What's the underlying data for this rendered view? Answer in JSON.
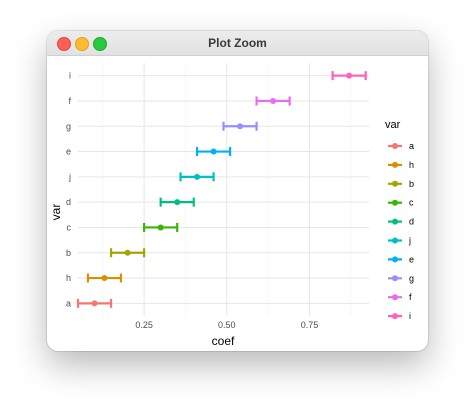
{
  "window": {
    "title": "Plot Zoom",
    "controls": [
      "close-button",
      "minimize-button",
      "maximize-button"
    ]
  },
  "chart_data": {
    "type": "scatter",
    "subtype": "point-range with horizontal error bars",
    "xlabel": "coef",
    "ylabel": "var",
    "xlim": [
      0.05,
      0.93
    ],
    "x_ticks": [
      0.25,
      0.5,
      0.75
    ],
    "x_tick_labels": [
      "0.25",
      "0.50",
      "0.75"
    ],
    "categories": [
      "a",
      "h",
      "b",
      "c",
      "d",
      "j",
      "e",
      "g",
      "f",
      "i"
    ],
    "grid": true,
    "legend": {
      "title": "var",
      "position": "right",
      "order": [
        "a",
        "h",
        "b",
        "c",
        "d",
        "j",
        "e",
        "g",
        "f",
        "i"
      ]
    },
    "series": [
      {
        "name": "a",
        "x": 0.1,
        "low": 0.05,
        "high": 0.15,
        "color": "#F8766D"
      },
      {
        "name": "h",
        "x": 0.13,
        "low": 0.08,
        "high": 0.18,
        "color": "#D89000"
      },
      {
        "name": "b",
        "x": 0.2,
        "low": 0.15,
        "high": 0.25,
        "color": "#A3A500"
      },
      {
        "name": "c",
        "x": 0.3,
        "low": 0.25,
        "high": 0.35,
        "color": "#39B600"
      },
      {
        "name": "d",
        "x": 0.35,
        "low": 0.3,
        "high": 0.4,
        "color": "#00BF7D"
      },
      {
        "name": "j",
        "x": 0.41,
        "low": 0.36,
        "high": 0.46,
        "color": "#00BFC4"
      },
      {
        "name": "e",
        "x": 0.46,
        "low": 0.41,
        "high": 0.51,
        "color": "#00B0F6"
      },
      {
        "name": "g",
        "x": 0.54,
        "low": 0.49,
        "high": 0.59,
        "color": "#9590FF"
      },
      {
        "name": "f",
        "x": 0.64,
        "low": 0.59,
        "high": 0.69,
        "color": "#E76BF3"
      },
      {
        "name": "i",
        "x": 0.87,
        "low": 0.82,
        "high": 0.92,
        "color": "#FF62BC"
      }
    ]
  }
}
